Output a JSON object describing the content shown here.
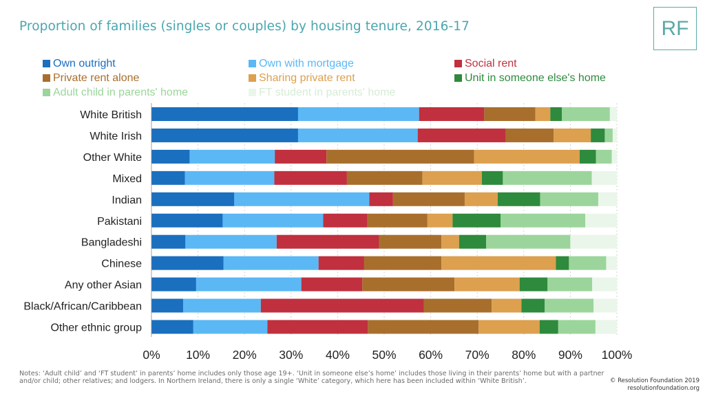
{
  "header": {
    "title": "Proportion of families (singles or couples) by housing tenure, 2016-17",
    "logo_text": "RF"
  },
  "footer": {
    "notes": "Notes: ‘Adult child’ and ‘FT student’ in parents’ home includes only those age 19+. ‘Unit in someone else’s home’ includes those living in their parents’ home but with a partner and/or child; other relatives; and lodgers. In Northern Ireland, there is only a single ‘White’ category, which here has been included within ‘White British’.",
    "copyright_line1": "© Resolution Foundation 2019",
    "copyright_line2": "resolutionfoundation.org"
  },
  "chart_data": {
    "type": "bar",
    "orientation": "horizontal",
    "stacked": true,
    "categories": [
      "White British",
      "White Irish",
      "Other White",
      "Mixed",
      "Indian",
      "Pakistani",
      "Bangladeshi",
      "Chinese",
      "Any other Asian",
      "Black/African/Caribbean",
      "Other ethnic group"
    ],
    "series": [
      {
        "name": "Own outright",
        "color": "#1a6fbf",
        "values": [
          31.5,
          31.5,
          8.2,
          7.2,
          17.8,
          15.3,
          7.3,
          15.5,
          9.6,
          6.8,
          9.0
        ]
      },
      {
        "name": "Own with mortgage",
        "color": "#5bb8f5",
        "values": [
          26.0,
          25.7,
          18.3,
          19.2,
          29.0,
          21.6,
          19.6,
          20.4,
          22.6,
          16.7,
          15.9
        ]
      },
      {
        "name": "Social rent",
        "color": "#c0303e",
        "values": [
          14.0,
          18.9,
          11.1,
          15.6,
          5.1,
          9.5,
          22.0,
          9.8,
          13.1,
          35.0,
          21.6
        ]
      },
      {
        "name": "Private rent alone",
        "color": "#a86f2c",
        "values": [
          11.0,
          10.3,
          31.7,
          16.2,
          15.4,
          12.9,
          13.4,
          16.6,
          19.8,
          14.6,
          23.8
        ]
      },
      {
        "name": "Sharing private rent",
        "color": "#dca04f",
        "values": [
          3.2,
          8.0,
          22.7,
          12.8,
          7.1,
          5.4,
          3.8,
          24.6,
          14.0,
          6.4,
          13.1
        ]
      },
      {
        "name": "Unit in someone else's home",
        "color": "#2e8a3c",
        "values": [
          2.5,
          3.0,
          3.5,
          4.5,
          9.1,
          10.3,
          5.8,
          2.8,
          6.0,
          5.0,
          4.0
        ]
      },
      {
        "name": "Adult child in parents' home",
        "color": "#9bd59b",
        "values": [
          10.3,
          1.7,
          3.4,
          19.1,
          12.5,
          18.2,
          18.1,
          8.0,
          9.6,
          10.5,
          8.0
        ]
      },
      {
        "name": "FT student in parents' home",
        "color": "#eaf6ea",
        "values": [
          1.5,
          0.9,
          1.1,
          5.4,
          4.0,
          6.8,
          10.0,
          2.3,
          5.3,
          5.0,
          4.6
        ]
      }
    ],
    "xlim": [
      0,
      100
    ],
    "x_ticks": [
      "0%",
      "10%",
      "20%",
      "30%",
      "40%",
      "50%",
      "60%",
      "70%",
      "80%",
      "90%",
      "100%"
    ],
    "legend_position": "top",
    "grid": "vertical dotted"
  }
}
